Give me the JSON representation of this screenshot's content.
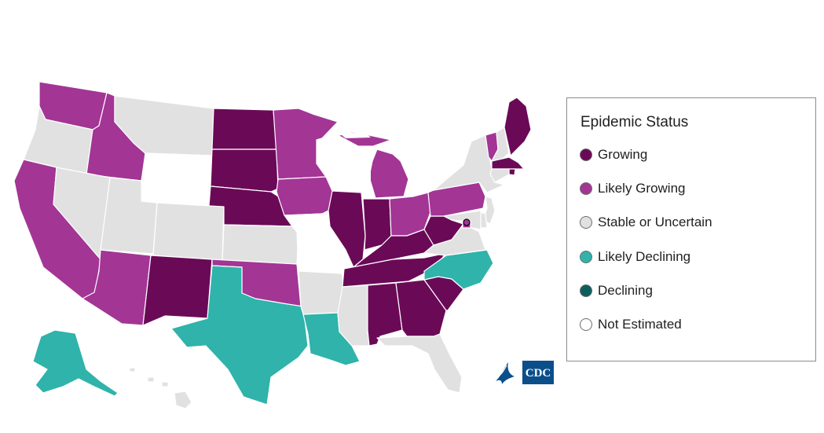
{
  "legend": {
    "title": "Epidemic Status",
    "items": [
      {
        "key": "growing",
        "label": "Growing",
        "color": "#6a0a57"
      },
      {
        "key": "likely_growing",
        "label": "Likely Growing",
        "color": "#a33595"
      },
      {
        "key": "stable",
        "label": "Stable or Uncertain",
        "color": "#e1e1e1"
      },
      {
        "key": "likely_declining",
        "label": "Likely Declining",
        "color": "#2fb3aa"
      },
      {
        "key": "declining",
        "label": "Declining",
        "color": "#0d5e5e"
      },
      {
        "key": "not_estimated",
        "label": "Not Estimated",
        "color": "#ffffff"
      }
    ]
  },
  "states": [
    {
      "name": "Washington",
      "status": "likely_growing"
    },
    {
      "name": "Oregon",
      "status": "stable"
    },
    {
      "name": "California",
      "status": "likely_growing"
    },
    {
      "name": "Idaho",
      "status": "likely_growing"
    },
    {
      "name": "Nevada",
      "status": "stable"
    },
    {
      "name": "Montana",
      "status": "stable"
    },
    {
      "name": "Wyoming",
      "status": "not_estimated"
    },
    {
      "name": "Utah",
      "status": "stable"
    },
    {
      "name": "Arizona",
      "status": "likely_growing"
    },
    {
      "name": "Colorado",
      "status": "stable"
    },
    {
      "name": "New Mexico",
      "status": "growing"
    },
    {
      "name": "North Dakota",
      "status": "growing"
    },
    {
      "name": "South Dakota",
      "status": "growing"
    },
    {
      "name": "Nebraska",
      "status": "growing"
    },
    {
      "name": "Kansas",
      "status": "stable"
    },
    {
      "name": "Oklahoma",
      "status": "likely_growing"
    },
    {
      "name": "Texas",
      "status": "likely_declining"
    },
    {
      "name": "Minnesota",
      "status": "likely_growing"
    },
    {
      "name": "Iowa",
      "status": "likely_growing"
    },
    {
      "name": "Missouri",
      "status": "not_estimated"
    },
    {
      "name": "Arkansas",
      "status": "stable"
    },
    {
      "name": "Louisiana",
      "status": "likely_declining"
    },
    {
      "name": "Wisconsin",
      "status": "not_estimated"
    },
    {
      "name": "Illinois",
      "status": "growing"
    },
    {
      "name": "Michigan",
      "status": "likely_growing"
    },
    {
      "name": "Indiana",
      "status": "growing"
    },
    {
      "name": "Ohio",
      "status": "likely_growing"
    },
    {
      "name": "Kentucky",
      "status": "growing"
    },
    {
      "name": "Tennessee",
      "status": "growing"
    },
    {
      "name": "Mississippi",
      "status": "stable"
    },
    {
      "name": "Alabama",
      "status": "growing"
    },
    {
      "name": "Georgia",
      "status": "growing"
    },
    {
      "name": "Florida",
      "status": "stable"
    },
    {
      "name": "South Carolina",
      "status": "growing"
    },
    {
      "name": "North Carolina",
      "status": "likely_declining"
    },
    {
      "name": "Virginia",
      "status": "stable"
    },
    {
      "name": "West Virginia",
      "status": "growing"
    },
    {
      "name": "Pennsylvania",
      "status": "likely_growing"
    },
    {
      "name": "New York",
      "status": "stable"
    },
    {
      "name": "Vermont",
      "status": "likely_growing"
    },
    {
      "name": "New Hampshire",
      "status": "stable"
    },
    {
      "name": "Maine",
      "status": "growing"
    },
    {
      "name": "Massachusetts",
      "status": "growing"
    },
    {
      "name": "Rhode Island",
      "status": "growing"
    },
    {
      "name": "Connecticut",
      "status": "stable"
    },
    {
      "name": "New Jersey",
      "status": "stable"
    },
    {
      "name": "Delaware",
      "status": "stable"
    },
    {
      "name": "Maryland",
      "status": "stable"
    },
    {
      "name": "District of Columbia",
      "status": "likely_growing"
    },
    {
      "name": "Alaska",
      "status": "likely_declining"
    },
    {
      "name": "Hawaii",
      "status": "stable"
    }
  ],
  "logo": {
    "text": "CDC",
    "primary_color": "#0b4f8a"
  }
}
